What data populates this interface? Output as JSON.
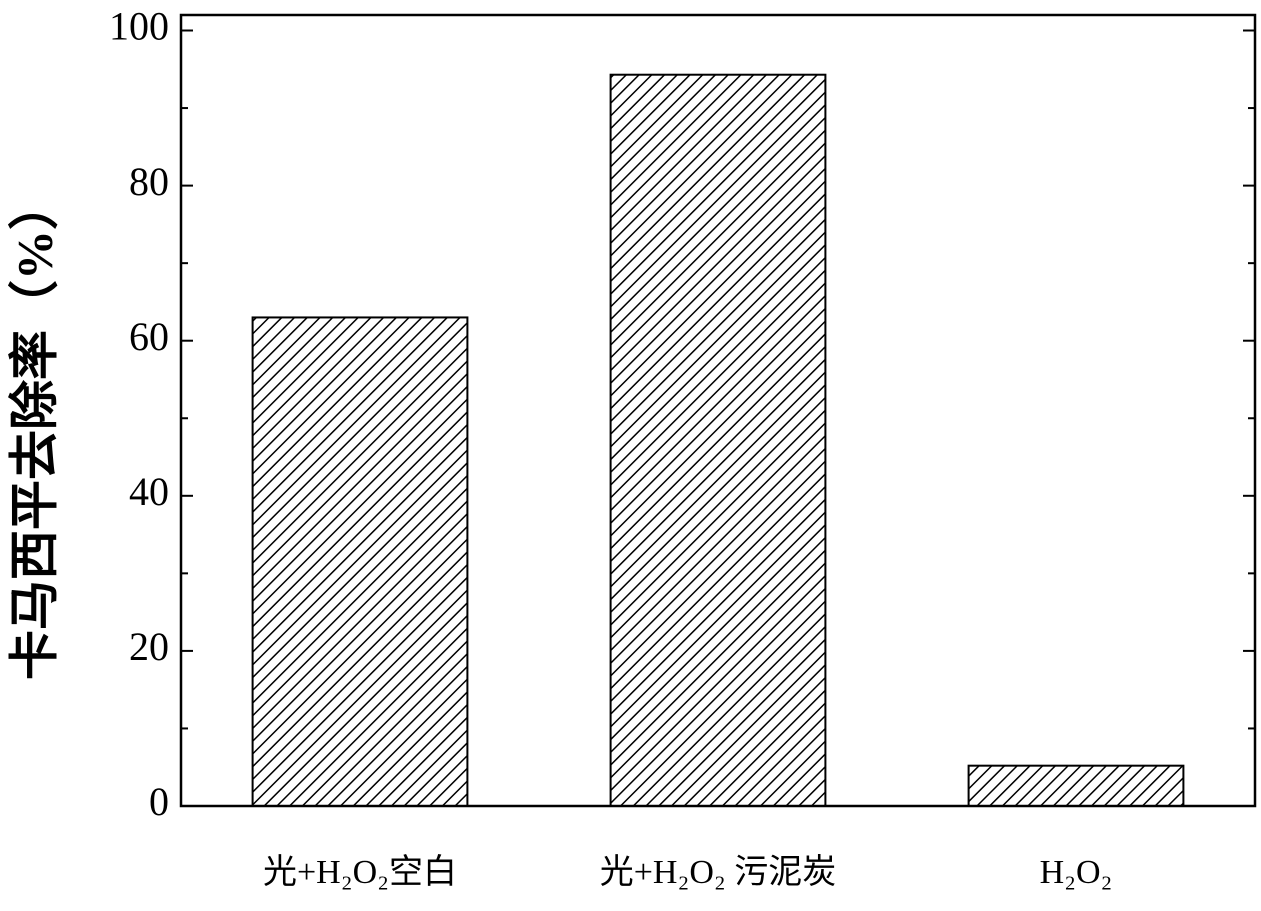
{
  "chart_data": {
    "type": "bar",
    "y_label": "卡马西平去除率（%）",
    "categories": [
      "光+H₂O₂空白",
      "光+H₂O₂ 污泥炭",
      "H₂O₂"
    ],
    "values": [
      63,
      94.3,
      5.2
    ],
    "color": "#000000",
    "hatch": "diagonal",
    "ylim": [
      0,
      102
    ],
    "yticks": [
      0,
      20,
      40,
      60,
      80,
      100
    ],
    "minor_yticks": [
      10,
      30,
      50,
      70,
      90
    ],
    "grid": false
  }
}
